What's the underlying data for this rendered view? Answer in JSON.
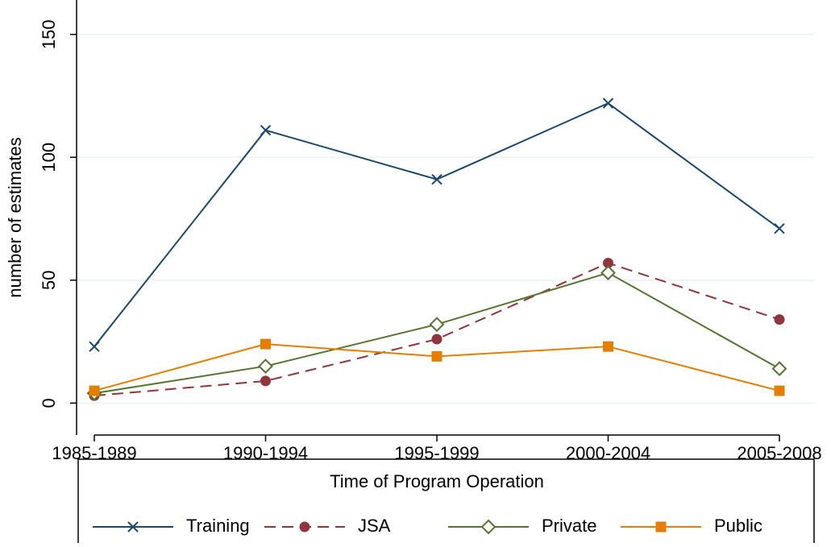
{
  "chart_data": {
    "type": "line",
    "x_label": "Time of Program Operation",
    "y_label": "number of estimates",
    "categories": [
      "1985-1989",
      "1990-1994",
      "1995-1999",
      "2000-2004",
      "2005-2008"
    ],
    "series": [
      {
        "name": "Training",
        "color": "#1a476f",
        "dash": false,
        "marker": "x",
        "values": [
          23,
          111,
          91,
          122,
          71
        ]
      },
      {
        "name": "JSA",
        "color": "#90353b",
        "dash": true,
        "marker": "circle",
        "values": [
          3,
          9,
          26,
          57,
          34
        ]
      },
      {
        "name": "Private",
        "color": "#55752f",
        "dash": false,
        "marker": "diamond",
        "values": [
          4,
          15,
          32,
          53,
          14
        ]
      },
      {
        "name": "Public",
        "color": "#e37e00",
        "dash": false,
        "marker": "square",
        "values": [
          5,
          24,
          19,
          23,
          5
        ]
      }
    ],
    "ylim": [
      -13,
      164
    ],
    "yticks": [
      0,
      50,
      100,
      150
    ],
    "grid": true,
    "legend": "bottom"
  }
}
